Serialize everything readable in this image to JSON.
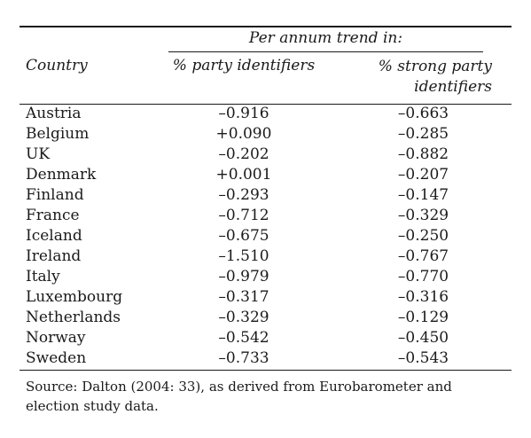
{
  "table": {
    "header_span": "Per annum trend in:",
    "col_country": "Country",
    "col_party": "% party identifiers",
    "col_strong_line1": "% strong party",
    "col_strong_line2": "identifiers",
    "rows": [
      {
        "country": "Austria",
        "party": "–0.916",
        "strong": "–0.663"
      },
      {
        "country": "Belgium",
        "party": "+0.090",
        "strong": "–0.285"
      },
      {
        "country": "UK",
        "party": "–0.202",
        "strong": "–0.882"
      },
      {
        "country": "Denmark",
        "party": "+0.001",
        "strong": "–0.207"
      },
      {
        "country": "Finland",
        "party": "–0.293",
        "strong": "–0.147"
      },
      {
        "country": "France",
        "party": "–0.712",
        "strong": "–0.329"
      },
      {
        "country": "Iceland",
        "party": "–0.675",
        "strong": "–0.250"
      },
      {
        "country": "Ireland",
        "party": "–1.510",
        "strong": "–0.767"
      },
      {
        "country": "Italy",
        "party": "–0.979",
        "strong": "–0.770"
      },
      {
        "country": "Luxembourg",
        "party": "–0.317",
        "strong": "–0.316"
      },
      {
        "country": "Netherlands",
        "party": "–0.329",
        "strong": "–0.129"
      },
      {
        "country": "Norway",
        "party": "–0.542",
        "strong": "–0.450"
      },
      {
        "country": "Sweden",
        "party": "–0.733",
        "strong": "–0.543"
      }
    ]
  },
  "source_note": "Source: Dalton (2004: 33), as derived from Eurobarometer and election study data."
}
